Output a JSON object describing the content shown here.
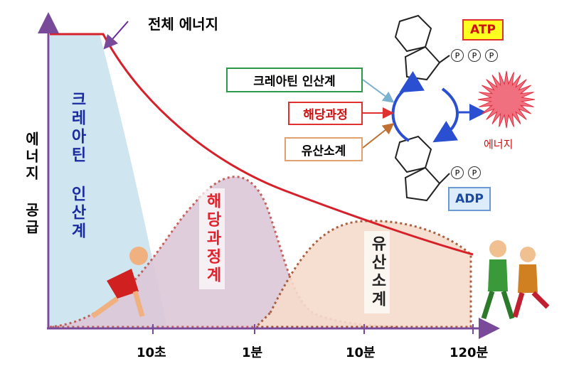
{
  "title": "전체 에너지",
  "y_axis_label": "에너지 공급",
  "x_axis_labels": [
    "10초",
    "1분",
    "10분",
    "120분"
  ],
  "areas": {
    "creatine": "크레아틴 인산계",
    "glycolysis": "해당과정계",
    "aerobic": "유산소계"
  },
  "cycle": {
    "inputs": [
      "크레아틴 인산계",
      "해당과정",
      "유산소계"
    ],
    "atp": "ATP",
    "adp": "ADP",
    "energy": "에너지",
    "atp_phosphates": [
      "P",
      "P",
      "P"
    ],
    "adp_phosphates": [
      "P",
      "P"
    ]
  }
}
